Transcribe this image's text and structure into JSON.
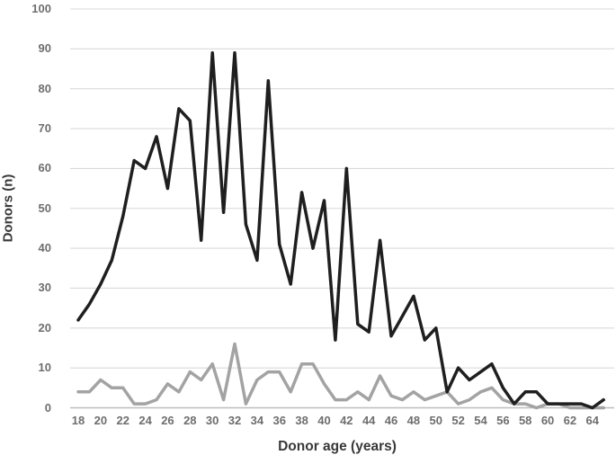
{
  "chart_data": {
    "type": "line",
    "title": "",
    "xlabel": "Donor age (years)",
    "ylabel": "Donors (n)",
    "x": [
      18,
      19,
      20,
      21,
      22,
      23,
      24,
      25,
      26,
      27,
      28,
      29,
      30,
      31,
      32,
      33,
      34,
      35,
      36,
      37,
      38,
      39,
      40,
      41,
      42,
      43,
      44,
      45,
      46,
      47,
      48,
      49,
      50,
      51,
      52,
      53,
      54,
      55,
      56,
      57,
      58,
      59,
      60,
      61,
      62,
      63,
      64,
      65
    ],
    "series": [
      {
        "name": "black-line",
        "color": "#1f1f1f",
        "values": [
          22,
          26,
          31,
          37,
          48,
          62,
          60,
          68,
          55,
          75,
          72,
          42,
          89,
          49,
          89,
          46,
          37,
          82,
          41,
          31,
          54,
          40,
          52,
          17,
          60,
          21,
          19,
          42,
          18,
          23,
          28,
          17,
          20,
          4,
          10,
          7,
          9,
          11,
          5,
          1,
          4,
          4,
          1,
          1,
          1,
          1,
          0,
          2
        ]
      },
      {
        "name": "gray-line",
        "color": "#a3a3a3",
        "values": [
          4,
          4,
          7,
          5,
          5,
          1,
          1,
          2,
          6,
          4,
          9,
          7,
          11,
          2,
          16,
          1,
          7,
          9,
          9,
          4,
          11,
          11,
          6,
          2,
          2,
          4,
          2,
          8,
          3,
          2,
          4,
          2,
          3,
          4,
          1,
          2,
          4,
          5,
          2,
          1,
          1,
          0,
          1,
          1,
          0,
          0,
          0,
          0
        ]
      }
    ],
    "ylim": [
      0,
      100
    ],
    "yticks": [
      0,
      10,
      20,
      30,
      40,
      50,
      60,
      70,
      80,
      90,
      100
    ],
    "xtick_labels": [
      "18",
      "20",
      "22",
      "24",
      "26",
      "28",
      "30",
      "32",
      "34",
      "36",
      "38",
      "40",
      "42",
      "44",
      "46",
      "48",
      "50",
      "52",
      "54",
      "56",
      "58",
      "60",
      "62",
      "64"
    ],
    "grid": "horizontal",
    "legend": "none"
  },
  "colors": {
    "background": "#ffffff",
    "gridline": "#d9d9d9",
    "axis_line": "#bdbdbd",
    "tick_label": "#6e6e6e",
    "axis_title": "#383838",
    "series_black": "#1f1f1f",
    "series_gray": "#a3a3a3"
  }
}
